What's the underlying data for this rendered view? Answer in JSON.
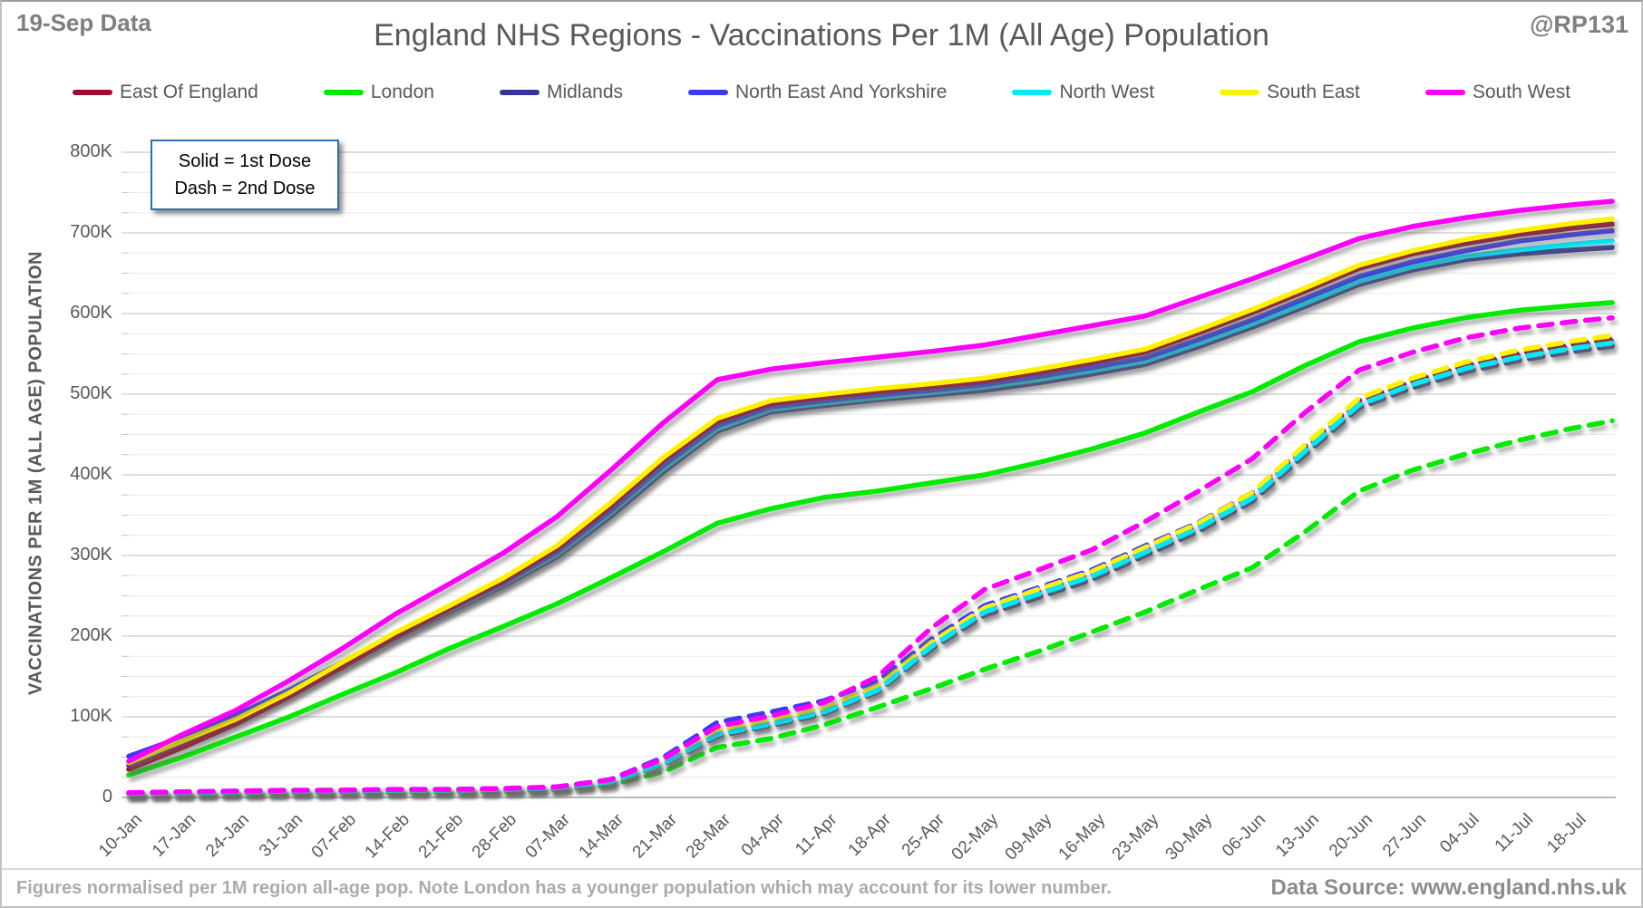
{
  "header": {
    "left_note": "19-Sep Data",
    "title": "England NHS Regions - Vaccinations Per 1M (All Age) Population",
    "right_handle": "@RP131"
  },
  "annotation": {
    "line1": "Solid = 1st Dose",
    "line2": "Dash = 2nd Dose",
    "border_color": "#2F6EB5"
  },
  "y_axis_title": "VACCINATIONS PER 1M (ALL AGE) POPULATION",
  "footer": {
    "note": "Figures normalised per 1M region all-age pop. Note London has a younger population which may account for its lower number.",
    "source": "Data Source: www.england.nhs.uk"
  },
  "chart_data": {
    "type": "line",
    "title": "England NHS Regions - Vaccinations Per 1M (All Age) Population",
    "ylabel": "VACCINATIONS PER 1M (ALL AGE) POPULATION",
    "values_unit": "thousands of vaccinations per 1M population",
    "ylim_thousands": [
      0,
      800
    ],
    "grid": "horizontal, minor every 25K, major every 100K",
    "legend_position": "top",
    "x_labels": [
      "10-Jan",
      "17-Jan",
      "24-Jan",
      "31-Jan",
      "07-Feb",
      "14-Feb",
      "21-Feb",
      "28-Feb",
      "07-Mar",
      "14-Mar",
      "21-Mar",
      "28-Mar",
      "04-Apr",
      "11-Apr",
      "18-Apr",
      "25-Apr",
      "02-May",
      "09-May",
      "16-May",
      "23-May",
      "30-May",
      "06-Jun",
      "13-Jun",
      "20-Jun",
      "27-Jun",
      "04-Jul",
      "11-Jul",
      "18-Jul"
    ],
    "y_ticks": [
      {
        "label": "800K",
        "value": 800
      },
      {
        "label": "700K",
        "value": 700
      },
      {
        "label": "600K",
        "value": 600
      },
      {
        "label": "500K",
        "value": 500
      },
      {
        "label": "400K",
        "value": 400
      },
      {
        "label": "300K",
        "value": 300
      },
      {
        "label": "200K",
        "value": 200
      },
      {
        "label": "100K",
        "value": 100
      },
      {
        "label": "0",
        "value": 0
      }
    ],
    "legend": [
      {
        "label": "East Of England",
        "color": "#A00B2E"
      },
      {
        "label": "London",
        "color": "#00EB00"
      },
      {
        "label": "Midlands",
        "color": "#35359B"
      },
      {
        "label": "North East And Yorkshire",
        "color": "#3A3AF5"
      },
      {
        "label": "North West",
        "color": "#00E9FA"
      },
      {
        "label": "South East",
        "color": "#FFF200"
      },
      {
        "label": "South West",
        "color": "#FC00FC"
      }
    ],
    "series": [
      {
        "name": "London",
        "dose": "1st",
        "style": "solid",
        "color": "#00EB00",
        "values": [
          28,
          50,
          75,
          100,
          128,
          155,
          185,
          212,
          240,
          272,
          305,
          340,
          358,
          372,
          380,
          390,
          400,
          415,
          432,
          452,
          478,
          503,
          536,
          565,
          582,
          595,
          604,
          610
        ]
      },
      {
        "name": "Midlands",
        "dose": "1st",
        "style": "solid",
        "color": "#35359B",
        "values": [
          40,
          68,
          95,
          127,
          163,
          198,
          230,
          262,
          298,
          348,
          404,
          454,
          478,
          486,
          493,
          499,
          505,
          514,
          525,
          537,
          559,
          583,
          609,
          636,
          654,
          667,
          674,
          679
        ]
      },
      {
        "name": "North West",
        "dose": "1st",
        "style": "solid",
        "color": "#00E9FA",
        "values": [
          45,
          72,
          99,
          130,
          166,
          201,
          233,
          265,
          301,
          352,
          408,
          457,
          481,
          489,
          496,
          502,
          509,
          518,
          529,
          541,
          563,
          587,
          613,
          640,
          658,
          671,
          679,
          686
        ]
      },
      {
        "name": "North East And Yorkshire",
        "dose": "1st",
        "style": "solid",
        "color": "#3A3AF5",
        "values": [
          51,
          75,
          102,
          133,
          168,
          202,
          234,
          266,
          304,
          355,
          412,
          461,
          484,
          492,
          499,
          505,
          512,
          522,
          533,
          545,
          568,
          592,
          619,
          646,
          664,
          678,
          690,
          698
        ]
      },
      {
        "name": "East Of England",
        "dose": "1st",
        "style": "solid",
        "color": "#A00B2E",
        "values": [
          35,
          62,
          91,
          125,
          162,
          200,
          234,
          268,
          308,
          360,
          418,
          466,
          488,
          496,
          503,
          509,
          516,
          527,
          539,
          552,
          576,
          601,
          628,
          656,
          674,
          687,
          698,
          706
        ]
      },
      {
        "name": "South East",
        "dose": "1st",
        "style": "solid",
        "color": "#FFF200",
        "values": [
          43,
          70,
          97,
          130,
          168,
          205,
          238,
          272,
          312,
          365,
          422,
          470,
          492,
          500,
          507,
          513,
          520,
          531,
          543,
          556,
          580,
          605,
          632,
          660,
          678,
          692,
          703,
          712
        ]
      },
      {
        "name": "South West",
        "dose": "1st",
        "style": "solid",
        "color": "#FC00FC",
        "values": [
          45,
          78,
          108,
          145,
          185,
          228,
          265,
          303,
          348,
          405,
          465,
          518,
          531,
          539,
          546,
          553,
          561,
          573,
          585,
          597,
          620,
          643,
          668,
          693,
          708,
          719,
          728,
          735
        ]
      },
      {
        "name": "London",
        "dose": "2nd",
        "style": "dash",
        "color": "#00EB00",
        "values": [
          4,
          5,
          6,
          6,
          7,
          7,
          8,
          8,
          10,
          15,
          32,
          62,
          73,
          90,
          112,
          135,
          159,
          181,
          205,
          230,
          258,
          285,
          330,
          380,
          406,
          426,
          443,
          458
        ]
      },
      {
        "name": "Midlands",
        "dose": "2nd",
        "style": "dash",
        "color": "#35359B",
        "values": [
          5,
          6,
          7,
          8,
          8,
          9,
          9,
          10,
          12,
          19,
          41,
          76,
          89,
          104,
          131,
          184,
          226,
          248,
          270,
          300,
          330,
          367,
          426,
          483,
          508,
          528,
          542,
          553
        ]
      },
      {
        "name": "North East And Yorkshire",
        "dose": "2nd",
        "style": "dash",
        "color": "#3A3AF5",
        "values": [
          5,
          6,
          7,
          8,
          9,
          9,
          10,
          11,
          13,
          22,
          50,
          93,
          106,
          120,
          145,
          196,
          238,
          260,
          282,
          312,
          341,
          378,
          436,
          492,
          516,
          535,
          549,
          560
        ]
      },
      {
        "name": "East Of England",
        "dose": "2nd",
        "style": "dash",
        "color": "#A00B2E",
        "values": [
          5,
          6,
          7,
          8,
          8,
          9,
          9,
          10,
          12,
          20,
          43,
          80,
          93,
          108,
          136,
          190,
          232,
          255,
          277,
          307,
          337,
          375,
          434,
          491,
          516,
          536,
          551,
          562
        ]
      },
      {
        "name": "South East",
        "dose": "2nd",
        "style": "dash",
        "color": "#FFF200",
        "values": [
          5,
          6,
          7,
          8,
          8,
          9,
          9,
          10,
          12,
          20,
          44,
          82,
          95,
          110,
          138,
          192,
          235,
          258,
          280,
          310,
          340,
          378,
          438,
          495,
          520,
          540,
          555,
          566
        ]
      },
      {
        "name": "North West",
        "dose": "2nd",
        "style": "dash",
        "color": "#00E9FA",
        "values": [
          5,
          6,
          7,
          8,
          8,
          9,
          9,
          10,
          12,
          19,
          42,
          78,
          91,
          106,
          133,
          187,
          230,
          252,
          274,
          304,
          334,
          371,
          430,
          487,
          512,
          532,
          546,
          557
        ]
      },
      {
        "name": "South West",
        "dose": "2nd",
        "style": "dash",
        "color": "#FC00FC",
        "values": [
          6,
          7,
          8,
          9,
          9,
          10,
          10,
          11,
          13,
          22,
          48,
          88,
          101,
          118,
          150,
          210,
          258,
          282,
          307,
          342,
          380,
          420,
          478,
          530,
          552,
          570,
          582,
          590
        ]
      }
    ]
  }
}
